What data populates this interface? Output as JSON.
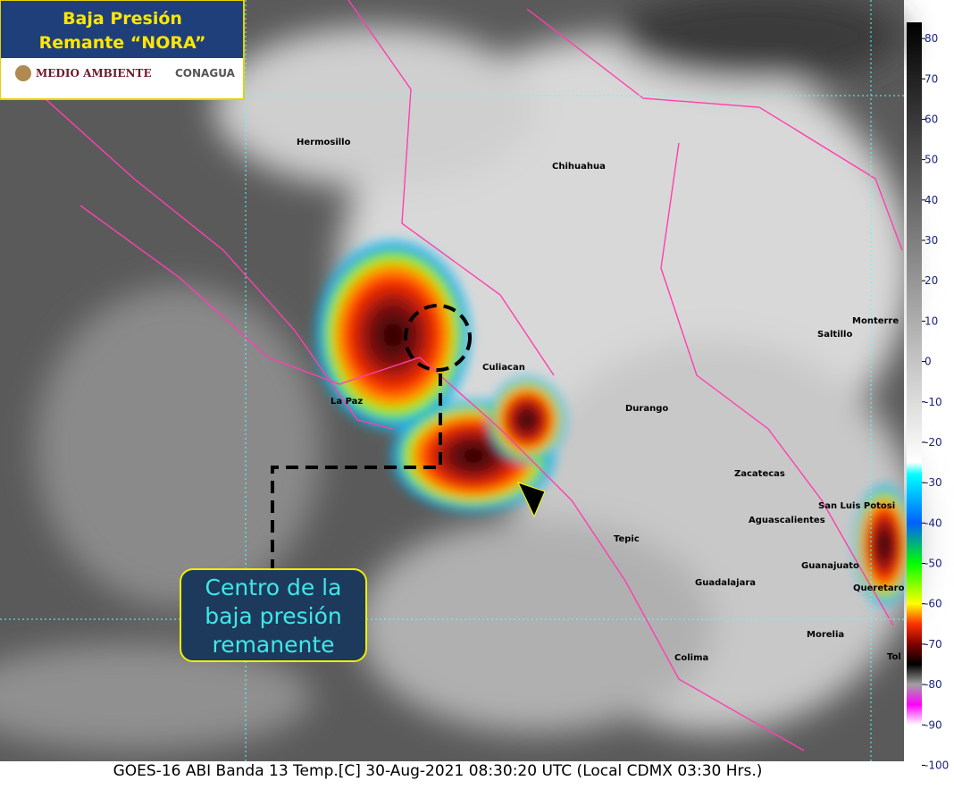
{
  "header": {
    "title_lines": [
      "Baja Presión",
      "Remante “NORA”"
    ],
    "logo_left": "MEDIO AMBIENTE",
    "logo_right": "CONAGUA"
  },
  "cities": [
    "Hermosillo",
    "Chihuahua",
    "Culiacan",
    "La Paz",
    "Durango",
    "Saltillo",
    "Monterre",
    "Zacatecas",
    "San Luis Potosi",
    "Aguascalientes",
    "Tepic",
    "Guanajuato",
    "Guadalajara",
    "Queretaro",
    "Morelia",
    "Colima",
    "Tol"
  ],
  "annotation": {
    "lines": [
      "Centro de la",
      "baja presión",
      "remanente"
    ]
  },
  "footer": "GOES-16 ABI Banda 13 Temp.[C] 30-Aug-2021 08:30:20 UTC (Local CDMX  03:30 Hrs.)",
  "colorbar": {
    "range": [
      84,
      -103
    ],
    "ticks": [
      80,
      70,
      60,
      50,
      40,
      30,
      20,
      10,
      0,
      -10,
      -20,
      -30,
      -40,
      -50,
      -60,
      -70,
      -80,
      -90,
      -100
    ],
    "stops": [
      {
        "value": 84,
        "color": "#000000"
      },
      {
        "value": -25,
        "color": "#ffffff"
      },
      {
        "value": -28,
        "color": "#00ffff"
      },
      {
        "value": -40,
        "color": "#0060ff"
      },
      {
        "value": -50,
        "color": "#00ff00"
      },
      {
        "value": -60,
        "color": "#ffff00"
      },
      {
        "value": -65,
        "color": "#ff3000"
      },
      {
        "value": -70,
        "color": "#800000"
      },
      {
        "value": -75,
        "color": "#000000"
      },
      {
        "value": -80,
        "color": "#a0a0a0"
      },
      {
        "value": -85,
        "color": "#ff00ff"
      },
      {
        "value": -90,
        "color": "#ffffff"
      },
      {
        "value": -103,
        "color": "#ffffff"
      }
    ]
  }
}
